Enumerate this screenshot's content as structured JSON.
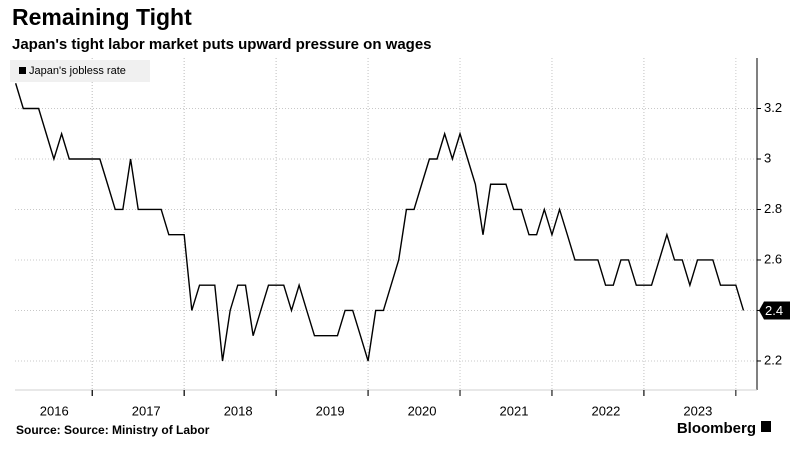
{
  "chart_data": {
    "type": "line",
    "title": "Remaining Tight",
    "subtitle": "Japan's tight labor market puts upward pressure on wages",
    "source": "Source: Source: Ministry of Labor",
    "brand": "Bloomberg",
    "x": [
      2016.167,
      2016.25,
      2016.333,
      2016.417,
      2016.5,
      2016.583,
      2016.667,
      2016.75,
      2016.833,
      2016.917,
      2017,
      2017.083,
      2017.167,
      2017.25,
      2017.333,
      2017.417,
      2017.5,
      2017.583,
      2017.667,
      2017.75,
      2017.833,
      2017.917,
      2018,
      2018.083,
      2018.167,
      2018.25,
      2018.333,
      2018.417,
      2018.5,
      2018.583,
      2018.667,
      2018.75,
      2018.833,
      2018.917,
      2019,
      2019.083,
      2019.167,
      2019.25,
      2019.333,
      2019.417,
      2019.5,
      2019.583,
      2019.667,
      2019.75,
      2019.833,
      2019.917,
      2020,
      2020.083,
      2020.167,
      2020.25,
      2020.333,
      2020.417,
      2020.5,
      2020.583,
      2020.667,
      2020.75,
      2020.833,
      2020.917,
      2021,
      2021.083,
      2021.167,
      2021.25,
      2021.333,
      2021.417,
      2021.5,
      2021.583,
      2021.667,
      2021.75,
      2021.833,
      2021.917,
      2022,
      2022.083,
      2022.167,
      2022.25,
      2022.333,
      2022.417,
      2022.5,
      2022.583,
      2022.667,
      2022.75,
      2022.833,
      2022.917,
      2023,
      2023.083,
      2023.167,
      2023.25,
      2023.333,
      2023.417,
      2023.5,
      2023.583,
      2023.667,
      2023.75,
      2023.833,
      2023.917,
      2024,
      2024.083
    ],
    "series": [
      {
        "name": "Japan's jobless rate",
        "color": "#000000",
        "values": [
          3.3,
          3.2,
          3.2,
          3.2,
          3.1,
          3.0,
          3.1,
          3.0,
          3.0,
          3.0,
          3.0,
          3.0,
          2.9,
          2.8,
          2.8,
          3.0,
          2.8,
          2.8,
          2.8,
          2.8,
          2.7,
          2.7,
          2.7,
          2.4,
          2.5,
          2.5,
          2.5,
          2.2,
          2.4,
          2.5,
          2.5,
          2.3,
          2.4,
          2.5,
          2.5,
          2.5,
          2.4,
          2.5,
          2.4,
          2.3,
          2.3,
          2.3,
          2.3,
          2.4,
          2.4,
          2.3,
          2.2,
          2.4,
          2.4,
          2.5,
          2.6,
          2.8,
          2.8,
          2.9,
          3.0,
          3.0,
          3.1,
          3.0,
          3.1,
          3.0,
          2.9,
          2.7,
          2.9,
          2.9,
          2.9,
          2.8,
          2.8,
          2.7,
          2.7,
          2.8,
          2.7,
          2.8,
          2.7,
          2.6,
          2.6,
          2.6,
          2.6,
          2.5,
          2.5,
          2.6,
          2.6,
          2.5,
          2.5,
          2.5,
          2.6,
          2.7,
          2.6,
          2.6,
          2.5,
          2.6,
          2.6,
          2.6,
          2.5,
          2.5,
          2.5,
          2.4
        ]
      }
    ],
    "xlim": [
      2016.16,
      2024.23
    ],
    "xticks": [
      {
        "value": 2016.5,
        "label": "2016"
      },
      {
        "value": 2017.5,
        "label": "2017"
      },
      {
        "value": 2018.5,
        "label": "2018"
      },
      {
        "value": 2019.5,
        "label": "2019"
      },
      {
        "value": 2020.5,
        "label": "2020"
      },
      {
        "value": 2021.5,
        "label": "2021"
      },
      {
        "value": 2022.5,
        "label": "2022"
      },
      {
        "value": 2023.5,
        "label": "2023"
      }
    ],
    "ylim": [
      2.085,
      3.4
    ],
    "yticks": [
      2.2,
      2.4,
      2.6,
      2.8,
      3.0,
      3.2
    ],
    "grid": true,
    "legend": "top-left"
  }
}
